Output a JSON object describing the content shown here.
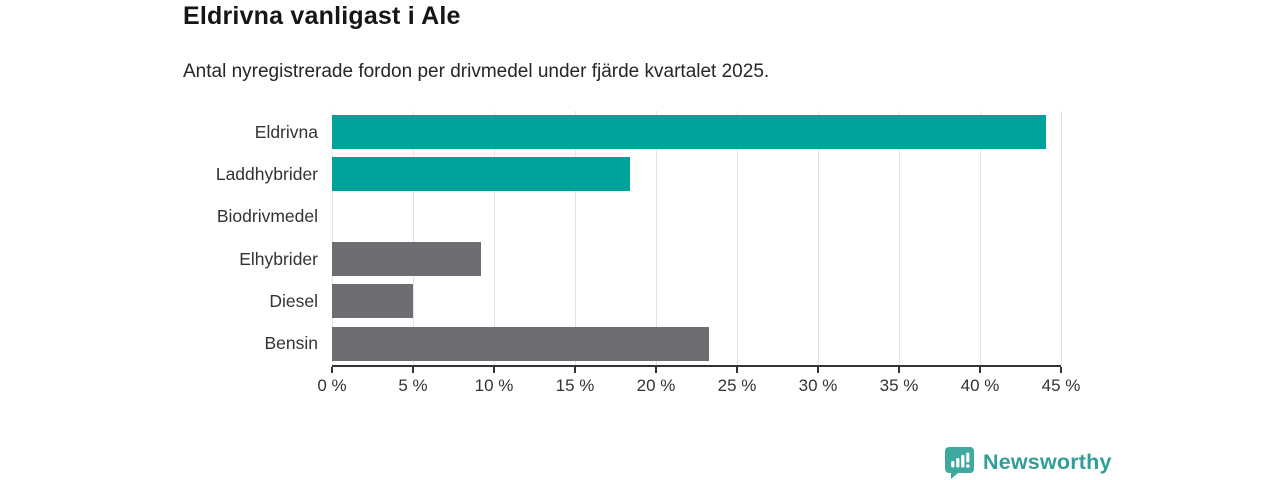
{
  "chart_data": {
    "type": "bar",
    "orientation": "horizontal",
    "title": "Eldrivna vanligast i Ale",
    "subtitle": "Antal nyregistrerade fordon per drivmedel under fjärde kvartalet 2025.",
    "categories": [
      "Eldrivna",
      "Laddhybrider",
      "Biodrivmedel",
      "Elhybrider",
      "Diesel",
      "Bensin"
    ],
    "values": [
      44.1,
      18.4,
      0,
      9.2,
      5.0,
      23.3
    ],
    "unit": "%",
    "xlim": [
      0,
      45
    ],
    "xticks": [
      0,
      5,
      10,
      15,
      20,
      25,
      30,
      35,
      40,
      45
    ],
    "xtick_labels": [
      "0 %",
      "5 %",
      "10 %",
      "15 %",
      "20 %",
      "25 %",
      "30 %",
      "35 %",
      "40 %",
      "45 %"
    ],
    "grid": "vertical-gridlines-on",
    "legend_position": "none",
    "bar_colors": [
      "#00a39a",
      "#00a39a",
      "#00a39a",
      "#6d6d72",
      "#6d6d72",
      "#6d6d72"
    ],
    "colors": {
      "accent_teal": "#00a39a",
      "neutral_gray": "#6d6d72",
      "gridline": "#e3e3e3",
      "axis": "#333333"
    }
  },
  "logo": {
    "text": "Newsworthy",
    "color": "#2f9f97",
    "icon": "newsworthy-bubble-barchart-icon",
    "icon_color": "#3fa8a0"
  }
}
